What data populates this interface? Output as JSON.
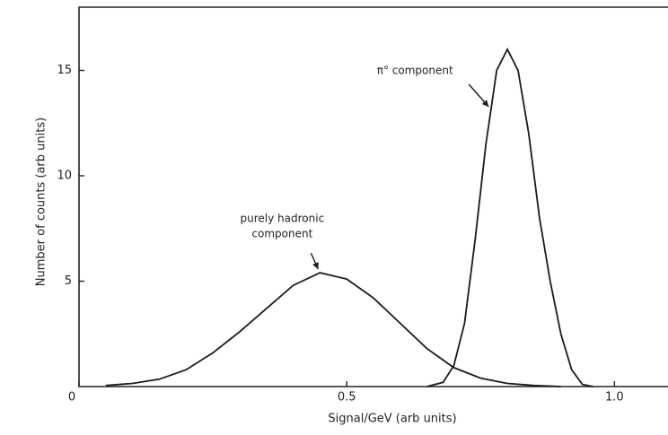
{
  "chart_data": {
    "type": "line",
    "xlabel": "Signal/GeV (arb units)",
    "ylabel": "Number of counts (arb units)",
    "xlim": [
      0,
      1.1
    ],
    "ylim": [
      0,
      18
    ],
    "xticks": [
      0,
      {
        "value": 0.5,
        "label": "0.5"
      },
      {
        "value": 1,
        "label": "1.0"
      }
    ],
    "yticks": [
      5,
      10,
      15
    ],
    "series": [
      {
        "color": "#1a1a1a",
        "x": [
          0.05,
          0.1,
          0.15,
          0.2,
          0.25,
          0.3,
          0.35,
          0.4,
          0.45,
          0.5,
          0.55,
          0.6,
          0.65,
          0.7,
          0.75,
          0.8,
          0.85,
          0.9
        ],
        "values": [
          0.05,
          0.15,
          0.35,
          0.8,
          1.6,
          2.6,
          3.7,
          4.8,
          5.4,
          5.1,
          4.2,
          3.0,
          1.8,
          0.9,
          0.4,
          0.15,
          0.05,
          0
        ]
      },
      {
        "color": "#1a1a1a",
        "x": [
          0.65,
          0.68,
          0.7,
          0.72,
          0.74,
          0.76,
          0.78,
          0.8,
          0.82,
          0.84,
          0.86,
          0.88,
          0.9,
          0.92,
          0.94,
          0.96
        ],
        "values": [
          0,
          0.2,
          1.0,
          3.0,
          7,
          11.5,
          15,
          16,
          15,
          12,
          8,
          5,
          2.5,
          0.8,
          0.1,
          0
        ]
      }
    ],
    "annotations": [
      {
        "lines": [
          "purely hadronic",
          "component"
        ],
        "x": 0.45,
        "y": 5.4
      },
      {
        "lines": [
          "π° component"
        ],
        "x": 0.77,
        "y": 12
      }
    ]
  }
}
